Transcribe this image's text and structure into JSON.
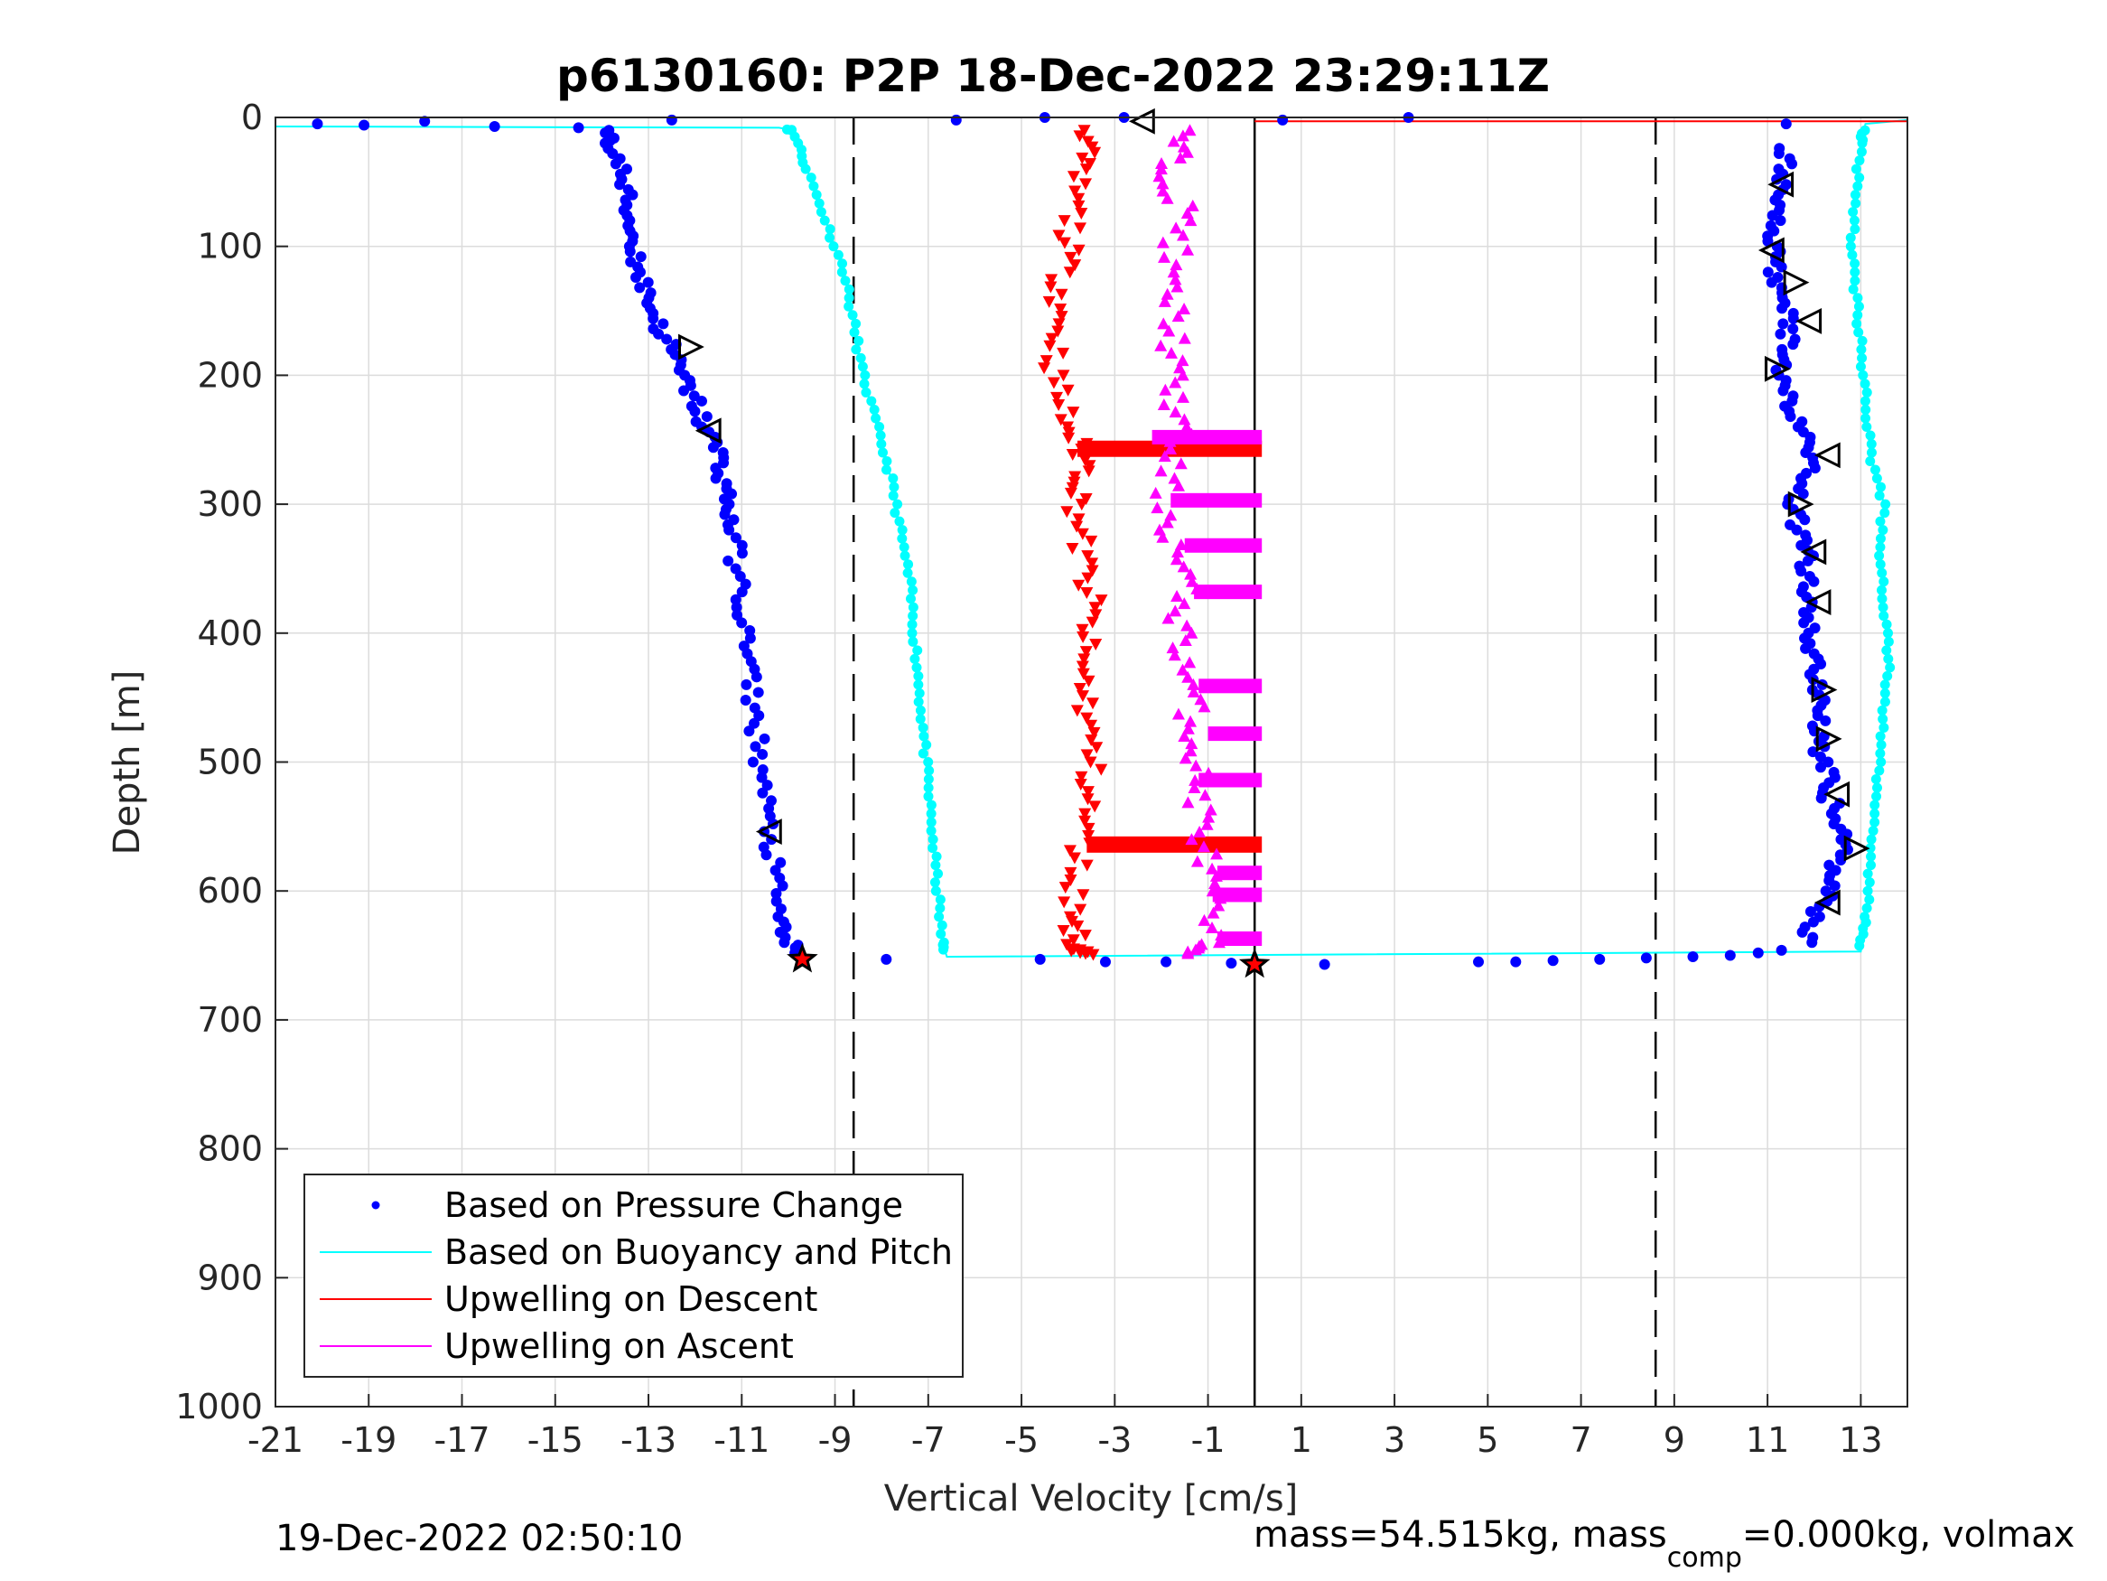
{
  "footer": {
    "timestamp": "19-Dec-2022 02:50:10",
    "mass_text": "mass=54.515kg, mass",
    "mass_sub": "comp",
    "mass_rest": "=0.000kg, volmax"
  },
  "colors": {
    "pressure": "#0000ff",
    "buoyancy": "#00ffff",
    "descent": "#ff0000",
    "ascent": "#ff00ff",
    "grid": "#dcdcdc",
    "axis": "#262626"
  },
  "chart_data": {
    "type": "scatter",
    "title": "p6130160: P2P 18-Dec-2022 23:29:11Z",
    "xlabel": "Vertical Velocity [cm/s]",
    "ylabel": "Depth [m]",
    "xlim": [
      -21,
      14
    ],
    "ylim": [
      0,
      1000
    ],
    "y_reversed": true,
    "grid": true,
    "legend_position": "bottom-left",
    "xticks": [
      -21,
      -19,
      -17,
      -15,
      -13,
      -11,
      -9,
      -7,
      -5,
      -3,
      -1,
      1,
      3,
      5,
      7,
      9,
      11,
      13
    ],
    "yticks": [
      0,
      100,
      200,
      300,
      400,
      500,
      600,
      700,
      800,
      900,
      1000
    ],
    "vlines": [
      {
        "x": -8.6,
        "style": "dashed"
      },
      {
        "x": 0,
        "style": "solid"
      },
      {
        "x": 8.6,
        "style": "dashed"
      }
    ],
    "series": [
      {
        "name": "Based on Pressure Change",
        "marker": "dot",
        "dive": [
          [
            -20.1,
            5
          ],
          [
            -19.1,
            6
          ],
          [
            -17.8,
            3
          ],
          [
            -16.3,
            7
          ],
          [
            -14.5,
            8
          ],
          [
            -14,
            10
          ],
          [
            -13.8,
            20
          ],
          [
            -13.6,
            40
          ],
          [
            -13.5,
            60
          ],
          [
            -13.4,
            80
          ],
          [
            -13.3,
            100
          ],
          [
            -13.2,
            120
          ],
          [
            -13,
            140
          ],
          [
            -12.8,
            160
          ],
          [
            -12.5,
            180
          ],
          [
            -12.3,
            200
          ],
          [
            -12,
            220
          ],
          [
            -11.8,
            240
          ],
          [
            -11.5,
            260
          ],
          [
            -11.4,
            280
          ],
          [
            -11.3,
            300
          ],
          [
            -11.2,
            320
          ],
          [
            -11.1,
            350
          ],
          [
            -11,
            380
          ],
          [
            -10.9,
            410
          ],
          [
            -10.8,
            440
          ],
          [
            -10.7,
            470
          ],
          [
            -10.6,
            500
          ],
          [
            -10.5,
            530
          ],
          [
            -10.4,
            560
          ],
          [
            -10.3,
            590
          ],
          [
            -10.2,
            620
          ],
          [
            -10,
            640
          ],
          [
            -9.8,
            650
          ]
        ],
        "bottom": [
          [
            -7.9,
            653
          ],
          [
            -4.6,
            653
          ],
          [
            -3.2,
            655
          ],
          [
            -1.9,
            655
          ],
          [
            -0.5,
            656
          ],
          [
            0,
            656
          ],
          [
            1.5,
            657
          ],
          [
            4.8,
            655
          ],
          [
            5.6,
            655
          ],
          [
            6.4,
            654
          ],
          [
            7.4,
            653
          ],
          [
            8.4,
            652
          ],
          [
            9.4,
            651
          ],
          [
            10.2,
            650
          ],
          [
            10.8,
            648
          ],
          [
            11.3,
            646
          ]
        ],
        "climb": [
          [
            11.8,
            640
          ],
          [
            12,
            620
          ],
          [
            12.3,
            600
          ],
          [
            12.5,
            580
          ],
          [
            12.6,
            560
          ],
          [
            12.4,
            540
          ],
          [
            12.3,
            520
          ],
          [
            12.2,
            500
          ],
          [
            12.1,
            480
          ],
          [
            12.2,
            460
          ],
          [
            12.1,
            440
          ],
          [
            12,
            420
          ],
          [
            11.9,
            400
          ],
          [
            11.8,
            380
          ],
          [
            11.9,
            360
          ],
          [
            11.8,
            340
          ],
          [
            11.7,
            320
          ],
          [
            11.6,
            300
          ],
          [
            11.8,
            280
          ],
          [
            12,
            260
          ],
          [
            11.7,
            240
          ],
          [
            11.5,
            220
          ],
          [
            11.3,
            200
          ],
          [
            11.4,
            180
          ],
          [
            11.5,
            160
          ],
          [
            11.3,
            140
          ],
          [
            11.2,
            120
          ],
          [
            11.1,
            100
          ],
          [
            11.3,
            80
          ],
          [
            11.2,
            60
          ],
          [
            11.4,
            40
          ],
          [
            11.3,
            20
          ],
          [
            11.4,
            5
          ],
          [
            3.3,
            0
          ],
          [
            0.6,
            2
          ],
          [
            -2.8,
            0
          ],
          [
            -4.5,
            0
          ],
          [
            -6.4,
            2
          ],
          [
            -12.5,
            2
          ]
        ]
      },
      {
        "name": "Based on Buoyancy and Pitch",
        "marker": "line+dot",
        "path": [
          [
            -21,
            7
          ],
          [
            -10.2,
            8
          ],
          [
            -9.9,
            10
          ],
          [
            -9.6,
            40
          ],
          [
            -9.2,
            80
          ],
          [
            -8.8,
            120
          ],
          [
            -8.6,
            160
          ],
          [
            -8.4,
            200
          ],
          [
            -8.1,
            240
          ],
          [
            -7.8,
            280
          ],
          [
            -7.6,
            320
          ],
          [
            -7.4,
            360
          ],
          [
            -7.3,
            400
          ],
          [
            -7.2,
            440
          ],
          [
            -7.1,
            480
          ],
          [
            -7,
            520
          ],
          [
            -6.9,
            560
          ],
          [
            -6.8,
            600
          ],
          [
            -6.7,
            640
          ],
          [
            -6.6,
            651
          ],
          [
            13,
            647
          ],
          [
            13.1,
            620
          ],
          [
            13.2,
            580
          ],
          [
            13.3,
            540
          ],
          [
            13.4,
            500
          ],
          [
            13.5,
            460
          ],
          [
            13.6,
            420
          ],
          [
            13.5,
            380
          ],
          [
            13.4,
            340
          ],
          [
            13.5,
            300
          ],
          [
            13.2,
            260
          ],
          [
            13.1,
            220
          ],
          [
            13,
            180
          ],
          [
            12.9,
            140
          ],
          [
            12.8,
            100
          ],
          [
            12.9,
            60
          ],
          [
            13,
            20
          ],
          [
            13.1,
            5
          ],
          [
            14,
            2
          ]
        ]
      },
      {
        "name": "Upwelling on Descent",
        "marker": "triangle-down",
        "path": [
          [
            -3.5,
            10
          ],
          [
            -3.8,
            40
          ],
          [
            -3.9,
            80
          ],
          [
            -4.1,
            120
          ],
          [
            -4.2,
            160
          ],
          [
            -4.3,
            200
          ],
          [
            -4,
            240
          ],
          [
            -3.6,
            270
          ],
          [
            -3.8,
            300
          ],
          [
            -3.7,
            340
          ],
          [
            -3.5,
            380
          ],
          [
            -3.7,
            420
          ],
          [
            -3.6,
            460
          ],
          [
            -3.5,
            500
          ],
          [
            -3.6,
            540
          ],
          [
            -3.8,
            580
          ],
          [
            -3.9,
            620
          ],
          [
            -3.8,
            645
          ],
          [
            -3.5,
            650
          ]
        ],
        "bands": [
          [
            -3.8,
            0,
            257
          ],
          [
            -3.6,
            0,
            564
          ]
        ],
        "surface": [
          [
            0,
            3
          ],
          [
            14,
            3
          ]
        ]
      },
      {
        "name": "Upwelling on Ascent",
        "marker": "triangle-up",
        "path": [
          [
            -1.6,
            10
          ],
          [
            -1.8,
            40
          ],
          [
            -1.5,
            80
          ],
          [
            -1.9,
            120
          ],
          [
            -1.7,
            160
          ],
          [
            -1.8,
            200
          ],
          [
            -1.6,
            240
          ],
          [
            -1.9,
            280
          ],
          [
            -1.8,
            320
          ],
          [
            -1.5,
            360
          ],
          [
            -1.6,
            400
          ],
          [
            -1.4,
            440
          ],
          [
            -1.3,
            480
          ],
          [
            -1.2,
            520
          ],
          [
            -1.1,
            560
          ],
          [
            -1.0,
            600
          ],
          [
            -1.0,
            640
          ],
          [
            -1.2,
            650
          ]
        ],
        "bands": [
          [
            -2.2,
            0,
            248
          ],
          [
            -1.8,
            0,
            297
          ],
          [
            -1.5,
            0,
            332
          ],
          [
            -1.3,
            0,
            368
          ],
          [
            -1.2,
            0,
            441
          ],
          [
            -1.0,
            0,
            478
          ],
          [
            -1.2,
            0,
            514
          ],
          [
            -0.8,
            0,
            586
          ],
          [
            -0.9,
            0,
            603
          ],
          [
            -0.8,
            0,
            637
          ]
        ]
      }
    ],
    "black_markers": [
      {
        "x": -12.1,
        "y": 178,
        "dir": "right"
      },
      {
        "x": -11.7,
        "y": 243,
        "dir": "left"
      },
      {
        "x": -10.4,
        "y": 554,
        "dir": "left"
      },
      {
        "x": -9.7,
        "y": 653,
        "dir": "star"
      },
      {
        "x": 0,
        "y": 657,
        "dir": "star"
      },
      {
        "x": -2.4,
        "y": 3,
        "dir": "left"
      },
      {
        "x": 11.3,
        "y": 52,
        "dir": "left"
      },
      {
        "x": 11.1,
        "y": 103,
        "dir": "left"
      },
      {
        "x": 11.6,
        "y": 128,
        "dir": "right"
      },
      {
        "x": 11.9,
        "y": 158,
        "dir": "left"
      },
      {
        "x": 11.2,
        "y": 195,
        "dir": "right"
      },
      {
        "x": 12.3,
        "y": 262,
        "dir": "left"
      },
      {
        "x": 11.7,
        "y": 300,
        "dir": "right"
      },
      {
        "x": 12,
        "y": 337,
        "dir": "left"
      },
      {
        "x": 12.1,
        "y": 376,
        "dir": "left"
      },
      {
        "x": 12.2,
        "y": 444,
        "dir": "right"
      },
      {
        "x": 12.3,
        "y": 482,
        "dir": "right"
      },
      {
        "x": 12.5,
        "y": 525,
        "dir": "left"
      },
      {
        "x": 12.9,
        "y": 567,
        "dir": "right"
      },
      {
        "x": 12.3,
        "y": 609,
        "dir": "left"
      }
    ]
  }
}
